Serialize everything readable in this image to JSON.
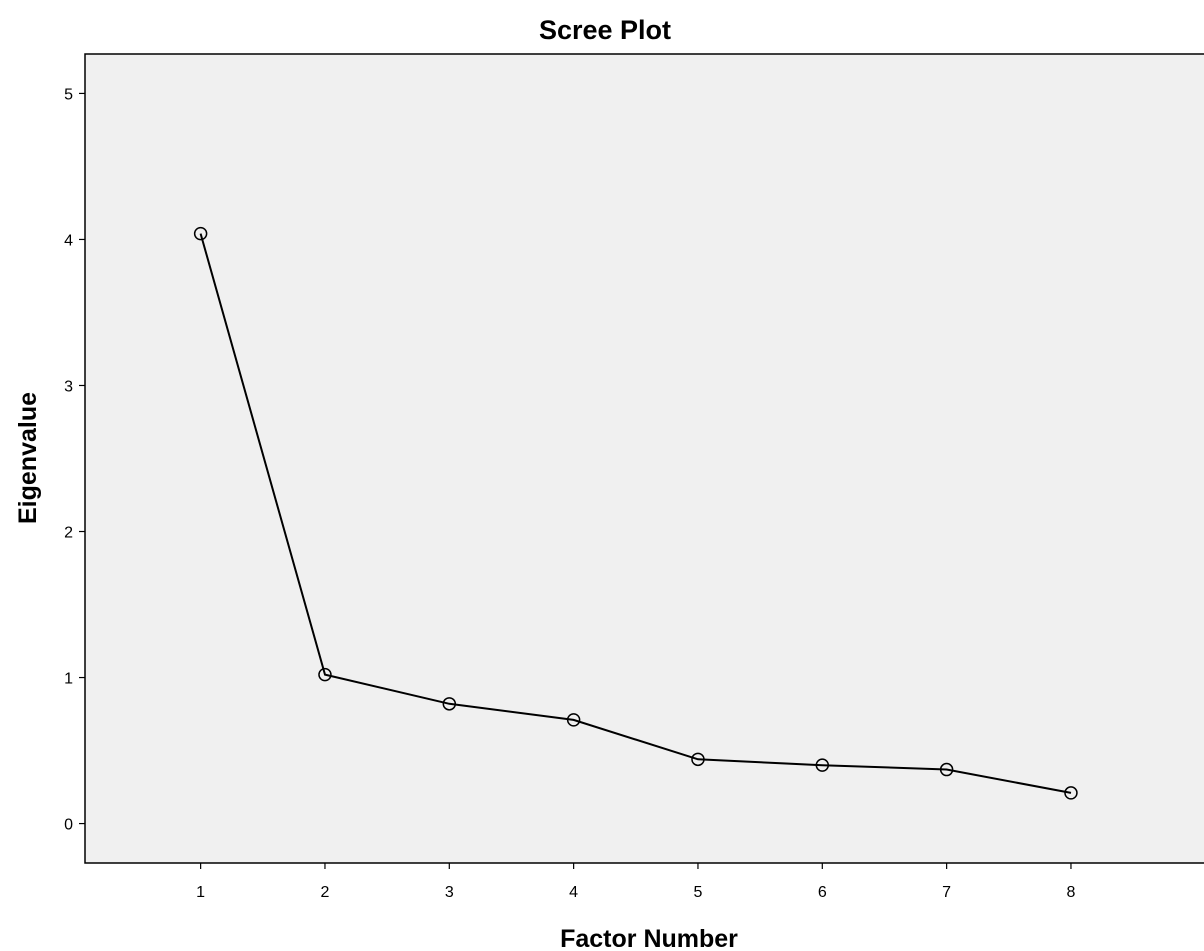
{
  "chart_data": {
    "type": "line",
    "title": "Scree Plot",
    "xlabel": "Factor Number",
    "ylabel": "Eigenvalue",
    "x": [
      1,
      2,
      3,
      4,
      5,
      6,
      7,
      8
    ],
    "series": [
      {
        "values": [
          4.04,
          1.02,
          0.82,
          0.71,
          0.44,
          0.4,
          0.37,
          0.21
        ]
      }
    ],
    "xticks": [
      "1",
      "2",
      "3",
      "4",
      "5",
      "6",
      "7",
      "8"
    ],
    "yticks": [
      "0",
      "1",
      "2",
      "3",
      "4",
      "5"
    ],
    "ylim": [
      -0.27,
      5.27
    ],
    "xlim": [
      0.07,
      9.07
    ],
    "grid": false,
    "marker": "open-circle",
    "colors": {
      "plot_background": "#f0f0f0",
      "line": "#000000",
      "frame": "#000000"
    }
  }
}
